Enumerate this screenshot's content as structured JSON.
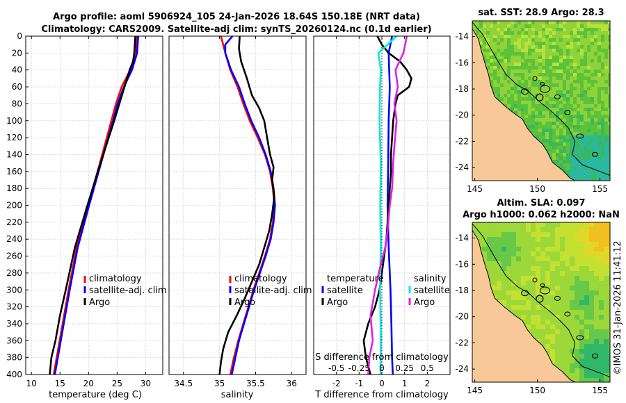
{
  "title": {
    "line1": "Argo profile: aoml 5906924_105 24-Jan-2026 18.64S 150.18E (NRT data)",
    "line2": "Climatology: CARS2009. Satellite-adj clim: synTS_20260124.nc (0.1d earlier)"
  },
  "colors": {
    "climatology": "#ff0000",
    "satellite": "#0000ff",
    "argo": "#000000",
    "sal_satellite": "#00e5e5",
    "sal_argo": "#e020e0",
    "land": "#f8c898"
  },
  "depth_axis": {
    "ylim": [
      0,
      400
    ],
    "ticks": [
      0,
      20,
      40,
      60,
      80,
      100,
      120,
      140,
      160,
      180,
      200,
      220,
      240,
      260,
      280,
      300,
      320,
      340,
      360,
      380,
      400
    ]
  },
  "chart_data": [
    {
      "id": "temperature",
      "type": "line",
      "xlabel": "temperature (deg C)",
      "ylabel": "depth",
      "xlim": [
        9,
        33
      ],
      "ylim": [
        0,
        400
      ],
      "xticks": [
        10,
        15,
        20,
        25,
        30
      ],
      "legend": [
        "climatology",
        "satellite-adj. clim",
        "Argo"
      ],
      "series": [
        {
          "name": "climatology",
          "color": "#ff0000",
          "depth": [
            0,
            20,
            40,
            60,
            80,
            100,
            150,
            200,
            250,
            300,
            350,
            400
          ],
          "values": [
            28.4,
            28.3,
            27.3,
            25.8,
            24.8,
            24.0,
            22.0,
            19.9,
            17.9,
            16.5,
            15.2,
            13.9
          ]
        },
        {
          "name": "satellite-adj. clim",
          "color": "#0000ff",
          "depth": [
            0,
            20,
            40,
            60,
            80,
            100,
            150,
            200,
            250,
            300,
            350,
            400
          ],
          "values": [
            28.7,
            28.5,
            27.6,
            26.2,
            25.1,
            24.3,
            22.2,
            20.1,
            18.1,
            16.7,
            15.4,
            14.1
          ]
        },
        {
          "name": "Argo",
          "color": "#000000",
          "depth": [
            0,
            20,
            30,
            40,
            60,
            80,
            100,
            150,
            200,
            250,
            300,
            330,
            360,
            380,
            400
          ],
          "values": [
            28.2,
            28.0,
            27.8,
            27.2,
            26.3,
            25.4,
            24.5,
            22.1,
            19.8,
            17.6,
            16.0,
            15.0,
            14.2,
            13.5,
            13.2
          ]
        }
      ]
    },
    {
      "id": "salinity",
      "type": "line",
      "xlabel": "salinity",
      "ylabel": "depth",
      "xlim": [
        34.3,
        36.2
      ],
      "ylim": [
        0,
        400
      ],
      "xticks": [
        34.5,
        35,
        35.5,
        36
      ],
      "legend": [
        "climatology",
        "satellite-adj. clim",
        "Argo"
      ],
      "series": [
        {
          "name": "climatology",
          "color": "#ff0000",
          "depth": [
            0,
            10,
            20,
            40,
            60,
            80,
            100,
            120,
            140,
            160,
            180,
            200,
            220,
            240,
            260,
            280,
            300,
            320,
            340,
            360,
            380,
            400
          ],
          "values": [
            35.02,
            35.05,
            35.08,
            35.15,
            35.25,
            35.33,
            35.42,
            35.53,
            35.63,
            35.7,
            35.74,
            35.76,
            35.74,
            35.7,
            35.63,
            35.55,
            35.47,
            35.4,
            35.33,
            35.26,
            35.2,
            35.15
          ]
        },
        {
          "name": "satellite-adj. clim",
          "color": "#0000ff",
          "depth": [
            0,
            10,
            20,
            40,
            60,
            80,
            100,
            120,
            140,
            160,
            180,
            200,
            220,
            240,
            260,
            280,
            300,
            320,
            340,
            360,
            380,
            400
          ],
          "values": [
            35.18,
            35.08,
            35.08,
            35.16,
            35.27,
            35.35,
            35.44,
            35.55,
            35.64,
            35.71,
            35.75,
            35.77,
            35.75,
            35.71,
            35.64,
            35.56,
            35.48,
            35.41,
            35.34,
            35.27,
            35.22,
            35.17
          ]
        },
        {
          "name": "Argo",
          "color": "#000000",
          "depth": [
            0,
            15,
            30,
            50,
            70,
            85,
            100,
            120,
            140,
            155,
            170,
            190,
            210,
            230,
            250,
            270,
            290,
            310,
            330,
            350,
            370,
            385,
            400
          ],
          "values": [
            35.28,
            35.27,
            35.3,
            35.38,
            35.45,
            35.55,
            35.62,
            35.66,
            35.7,
            35.75,
            35.73,
            35.76,
            35.73,
            35.69,
            35.62,
            35.55,
            35.45,
            35.35,
            35.24,
            35.12,
            35.05,
            35.02,
            35.0
          ]
        }
      ]
    },
    {
      "id": "difference",
      "type": "line",
      "xlabel": "T difference from climatology",
      "xlabel_top": "S difference from climatology",
      "ylabel": "depth",
      "xlim": [
        -3,
        3
      ],
      "ylim": [
        0,
        400
      ],
      "xticks": [
        -2,
        -1,
        0,
        1,
        2
      ],
      "s_ticks": [
        {
          "label": "-0.5",
          "x": -2
        },
        {
          "label": "-0.25",
          "x": -1
        },
        {
          "label": "0",
          "x": 0
        },
        {
          "label": "0.25",
          "x": 1
        },
        {
          "label": "0.5",
          "x": 2
        }
      ],
      "legend_temperature_title": "temperature",
      "legend_salinity_title": "salinity",
      "legend_temperature": [
        "satellite",
        "Argo"
      ],
      "legend_salinity": [
        "satellite",
        "Argo"
      ],
      "series": [
        {
          "name": "temperature satellite",
          "color": "#0000ff",
          "depth": [
            0,
            20,
            40,
            60,
            100,
            150,
            200,
            250,
            280,
            300,
            340,
            380,
            400
          ],
          "values": [
            0.45,
            0.3,
            0.32,
            0.35,
            0.3,
            0.28,
            0.25,
            0.3,
            0.35,
            0.38,
            0.42,
            0.45,
            0.48
          ]
        },
        {
          "name": "temperature Argo",
          "color": "#000000",
          "depth": [
            0,
            10,
            20,
            30,
            40,
            50,
            60,
            70,
            80,
            100,
            120,
            140,
            160,
            180,
            200,
            220,
            240,
            260,
            280,
            300,
            320,
            340,
            360,
            380,
            400
          ],
          "values": [
            -0.2,
            0.0,
            0.3,
            0.8,
            1.1,
            1.3,
            1.2,
            0.7,
            0.6,
            0.5,
            0.45,
            0.4,
            0.4,
            0.35,
            0.3,
            0.25,
            0.2,
            0.1,
            0.0,
            -0.1,
            -0.3,
            -0.6,
            -0.8,
            -0.7,
            -0.5
          ]
        },
        {
          "name": "salinity satellite",
          "color": "#00e5e5",
          "depth": [
            0,
            20,
            40,
            60,
            100,
            150,
            200,
            250,
            300,
            350,
            400
          ],
          "values": [
            0.65,
            -0.15,
            -0.05,
            -0.08,
            -0.1,
            -0.05,
            -0.07,
            -0.05,
            -0.08,
            -0.05,
            -0.06
          ]
        },
        {
          "name": "salinity Argo",
          "color": "#e020e0",
          "depth": [
            0,
            20,
            40,
            60,
            80,
            100,
            130,
            150,
            180,
            200,
            230,
            250,
            270,
            300,
            330,
            360,
            380,
            400
          ],
          "values": [
            1.1,
            0.95,
            0.6,
            0.7,
            0.55,
            0.65,
            0.55,
            0.5,
            0.45,
            0.35,
            0.25,
            0.15,
            -0.05,
            -0.3,
            -0.5,
            -0.4,
            -0.55,
            -0.6
          ]
        }
      ]
    }
  ],
  "maps": {
    "top_title": "sat. SST: 28.9 Argo: 28.3",
    "bottom_title_1": "Altim. SLA: 0.097",
    "bottom_title_2": "Argo h1000: 0.062 h2000: NaN",
    "lon_ticks": [
      "145",
      "150",
      "155"
    ],
    "lat_ticks": [
      "-14",
      "-16",
      "-18",
      "-20",
      "-22",
      "-24"
    ],
    "lon_values": [
      145,
      150,
      155
    ],
    "lat_values": [
      -14,
      -16,
      -18,
      -20,
      -22,
      -24
    ],
    "lon_range": [
      144.8,
      155.8
    ],
    "lat_range": [
      -12.8,
      -25
    ],
    "float_position": {
      "lon": 150.18,
      "lat": -18.64
    }
  },
  "footer": "©IMOS 31-Jan-2026 11:41:12"
}
